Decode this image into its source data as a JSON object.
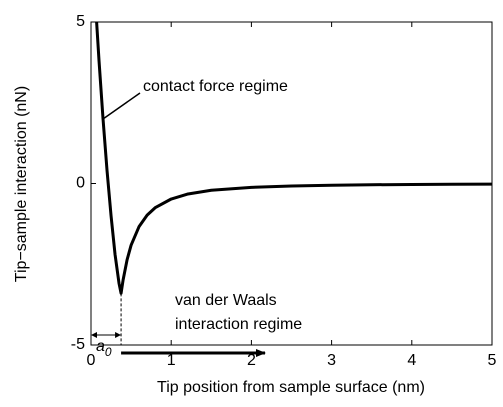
{
  "chart_data": {
    "type": "line",
    "xlabel": "Tip position from sample surface (nm)",
    "ylabel": "Tip−sample interaction (nN)",
    "x": [
      0.07,
      0.1,
      0.15,
      0.2,
      0.25,
      0.3,
      0.35,
      0.375,
      0.4,
      0.45,
      0.5,
      0.6,
      0.7,
      0.8,
      1.0,
      1.2,
      1.5,
      2,
      2.5,
      3,
      3.5,
      4,
      4.5,
      5
    ],
    "series": [
      {
        "color": "#000000",
        "values": [
          5,
          3.8,
          2.0,
          0.4,
          -1.0,
          -2.2,
          -3.1,
          -3.4,
          -2.99,
          -2.36,
          -1.91,
          -1.33,
          -0.98,
          -0.75,
          -0.48,
          -0.33,
          -0.21,
          -0.12,
          -0.077,
          -0.053,
          -0.039,
          -0.03,
          -0.024,
          -0.019
        ]
      }
    ],
    "xlim": [
      0,
      5
    ],
    "xticks": [
      0,
      1,
      2,
      3,
      4,
      5
    ],
    "ylim": [
      -5,
      5
    ],
    "yticks": [
      -5,
      0,
      5
    ],
    "annotations": {
      "contact": "contact force regime",
      "vdw": [
        "van der Waals",
        "interaction regime"
      ],
      "a0": {
        "text": "a",
        "sub": "0"
      }
    }
  }
}
